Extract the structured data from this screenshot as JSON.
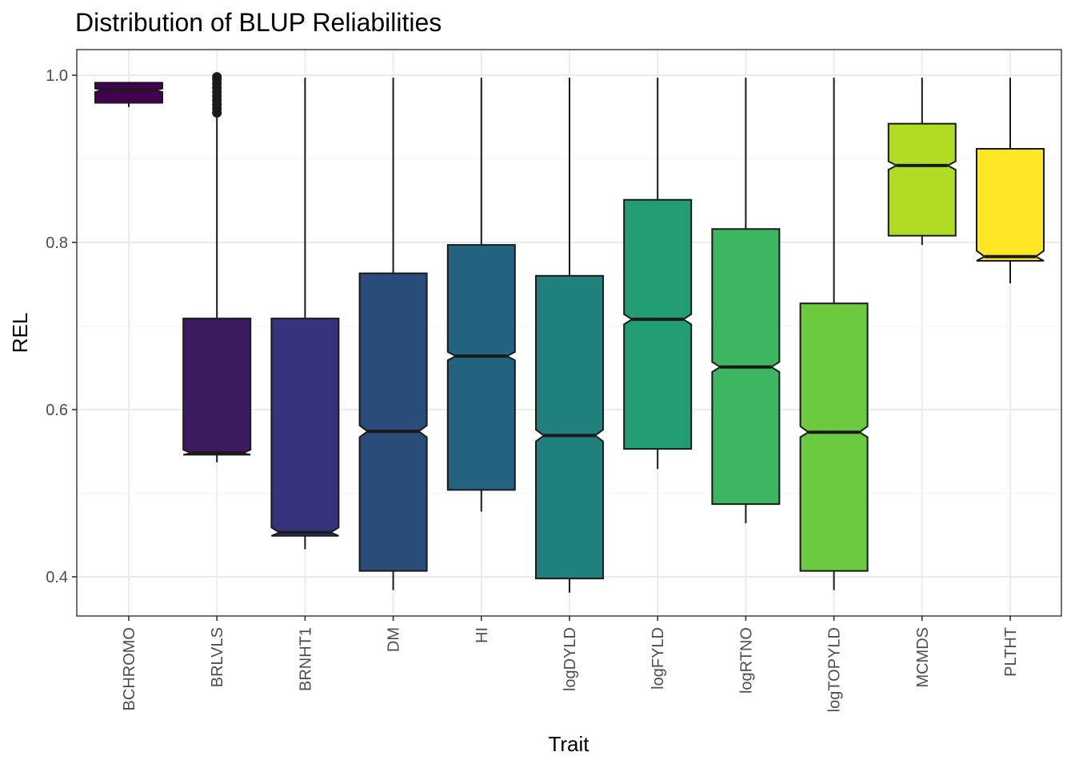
{
  "chart_data": {
    "type": "boxplot",
    "notched": true,
    "title": "Distribution of BLUP Reliabilities",
    "xlabel": "Trait",
    "ylabel": "REL",
    "ylim": [
      0.35,
      1.03
    ],
    "yticks": [
      0.4,
      0.6,
      0.8,
      1.0
    ],
    "ytick_labels": [
      "0.4",
      "0.6",
      "0.8",
      "1.0"
    ],
    "grid": true,
    "legend": "none",
    "categories": [
      "BCHROMO",
      "BRLVLS",
      "BRNHT1",
      "DM",
      "HI",
      "logDYLD",
      "logFYLD",
      "logRTNO",
      "logTOPYLD",
      "MCMDS",
      "PLTHT"
    ],
    "boxes": [
      {
        "category": "BCHROMO",
        "whisker_low": 0.962,
        "q1": 0.967,
        "median": 0.982,
        "q3": 0.991,
        "whisker_high": 0.992,
        "notch_low": 0.98,
        "notch_high": 0.984,
        "color": "#440154",
        "outliers": []
      },
      {
        "category": "BRLVLS",
        "whisker_low": 0.537,
        "q1": 0.546,
        "median": 0.548,
        "q3": 0.709,
        "whisker_high": 0.953,
        "notch_low": 0.546,
        "notch_high": 0.552,
        "color": "#3B1B5E",
        "outliers": [
          0.955,
          0.96,
          0.965,
          0.97,
          0.975,
          0.98,
          0.985,
          0.99,
          0.995,
          0.998
        ]
      },
      {
        "category": "BRNHT1",
        "whisker_low": 0.433,
        "q1": 0.449,
        "median": 0.453,
        "q3": 0.709,
        "whisker_high": 0.997,
        "notch_low": 0.449,
        "notch_high": 0.459,
        "color": "#36327B",
        "outliers": []
      },
      {
        "category": "DM",
        "whisker_low": 0.384,
        "q1": 0.407,
        "median": 0.574,
        "q3": 0.763,
        "whisker_high": 0.997,
        "notch_low": 0.567,
        "notch_high": 0.581,
        "color": "#2A4C79",
        "outliers": []
      },
      {
        "category": "HI",
        "whisker_low": 0.478,
        "q1": 0.504,
        "median": 0.664,
        "q3": 0.797,
        "whisker_high": 0.997,
        "notch_low": 0.659,
        "notch_high": 0.669,
        "color": "#22637F",
        "outliers": []
      },
      {
        "category": "logDYLD",
        "whisker_low": 0.381,
        "q1": 0.398,
        "median": 0.569,
        "q3": 0.76,
        "whisker_high": 0.997,
        "notch_low": 0.562,
        "notch_high": 0.576,
        "color": "#1F807C",
        "outliers": []
      },
      {
        "category": "logFYLD",
        "whisker_low": 0.529,
        "q1": 0.553,
        "median": 0.708,
        "q3": 0.851,
        "whisker_high": 0.997,
        "notch_low": 0.702,
        "notch_high": 0.714,
        "color": "#219C73",
        "outliers": []
      },
      {
        "category": "logRTNO",
        "whisker_low": 0.464,
        "q1": 0.487,
        "median": 0.651,
        "q3": 0.816,
        "whisker_high": 0.997,
        "notch_low": 0.645,
        "notch_high": 0.657,
        "color": "#3CB661",
        "outliers": []
      },
      {
        "category": "logTOPYLD",
        "whisker_low": 0.384,
        "q1": 0.407,
        "median": 0.573,
        "q3": 0.727,
        "whisker_high": 0.997,
        "notch_low": 0.567,
        "notch_high": 0.58,
        "color": "#6BCA3F",
        "outliers": []
      },
      {
        "category": "MCMDS",
        "whisker_low": 0.797,
        "q1": 0.808,
        "median": 0.892,
        "q3": 0.942,
        "whisker_high": 0.997,
        "notch_low": 0.887,
        "notch_high": 0.897,
        "color": "#B0DD24",
        "outliers": []
      },
      {
        "category": "PLTHT",
        "whisker_low": 0.751,
        "q1": 0.778,
        "median": 0.783,
        "q3": 0.912,
        "whisker_high": 0.997,
        "notch_low": 0.778,
        "notch_high": 0.79,
        "color": "#FDE725",
        "outliers": []
      }
    ]
  },
  "colors": {
    "panel_border": "#333333",
    "grid_major": "#EBEBEB",
    "grid_minor": "#F5F5F5",
    "box_stroke": "#1A1A1A",
    "tick": "#333333"
  }
}
